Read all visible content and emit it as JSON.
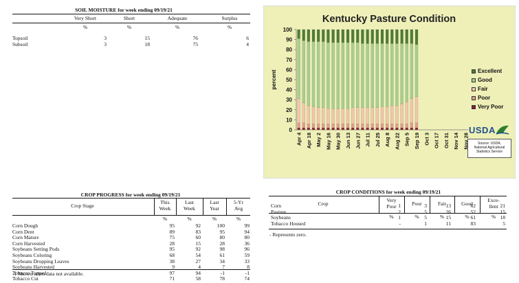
{
  "soil_moisture": {
    "title": "SOIL MOISTURE for week ending 09/19/21",
    "columns": [
      "Very Short",
      "Short",
      "Adequate",
      "Surplus"
    ],
    "unit_row": [
      "%",
      "%",
      "%",
      "%"
    ],
    "rows": [
      {
        "label": "Topsoil",
        "values": [
          "3",
          "15",
          "76",
          "6"
        ]
      },
      {
        "label": "Subsoil",
        "values": [
          "3",
          "18",
          "75",
          "4"
        ]
      }
    ]
  },
  "crop_progress": {
    "title": "CROP PROGRESS for week ending 09/19/21",
    "stage_header": "Crop Stage",
    "columns": [
      {
        "line1": "This",
        "line2": "Week"
      },
      {
        "line1": "Last",
        "line2": "Week"
      },
      {
        "line1": "Last",
        "line2": "Year"
      },
      {
        "line1": "5-Yr",
        "line2": "Avg"
      }
    ],
    "unit_row": [
      "%",
      "%",
      "%",
      "%"
    ],
    "rows": [
      {
        "label": "Corn Dough",
        "values": [
          "95",
          "92",
          "100",
          "99"
        ]
      },
      {
        "label": "Corn Dent",
        "values": [
          "89",
          "83",
          "95",
          "94"
        ]
      },
      {
        "label": "Corn Mature",
        "values": [
          "75",
          "60",
          "80",
          "80"
        ]
      },
      {
        "label": "Corn Harvested",
        "values": [
          "28",
          "15",
          "28",
          "36"
        ]
      },
      {
        "label": "Soybeans Setting Pods",
        "values": [
          "95",
          "92",
          "98",
          "96"
        ]
      },
      {
        "label": "Soybeans Coloring",
        "values": [
          "68",
          "54",
          "61",
          "59"
        ]
      },
      {
        "label": "Soybeans Dropping Leaves",
        "values": [
          "38",
          "27",
          "34",
          "33"
        ]
      },
      {
        "label": "Soybeans Harvested",
        "values": [
          "9",
          "4",
          "7",
          "8"
        ]
      },
      {
        "label": "Tobacco Topped",
        "values": [
          "97",
          "94",
          "-1",
          "-1"
        ]
      },
      {
        "label": "Tobacco Cut",
        "values": [
          "71",
          "58",
          "78",
          "74"
        ]
      }
    ],
    "footnote": "-1 Shown when data not available."
  },
  "crop_conditions": {
    "title": "CROP CONDITIONS for week ending 09/19/21",
    "crop_header": "Crop",
    "columns": [
      {
        "line1": "Very",
        "line2": "Poor"
      },
      {
        "line1": "Poor",
        "line2": ""
      },
      {
        "line1": "Fair",
        "line2": ""
      },
      {
        "line1": "Good",
        "line2": ""
      },
      {
        "line1": "Exce-",
        "line2": "llent"
      }
    ],
    "unit_row": [
      "%",
      "%",
      "%",
      "%",
      "%"
    ],
    "rows": [
      {
        "label": "Corn",
        "values": [
          "1",
          "3",
          "13",
          "62",
          "21"
        ]
      },
      {
        "label": "Pasture",
        "values": [
          "2",
          "5",
          "26",
          "52",
          "15"
        ]
      },
      {
        "label": "Soybeans",
        "values": [
          "1",
          "5",
          "15",
          "61",
          "18"
        ]
      },
      {
        "label": "Tobacco Housed",
        "values": [
          "-",
          "1",
          "11",
          "83",
          "5"
        ]
      }
    ],
    "footnote": "- Represents zero."
  },
  "chart_data": {
    "type": "bar",
    "stacked": true,
    "title": "Kentucky Pasture Condition",
    "xlabel": "",
    "ylabel": "percent",
    "ylim": [
      0,
      100
    ],
    "yticks": [
      0,
      10,
      20,
      30,
      40,
      50,
      60,
      70,
      80,
      90,
      100
    ],
    "grid": false,
    "legend_position": "right",
    "tick_labels": [
      "Apr 4",
      "Apr 18",
      "May 2",
      "May 16",
      "May 30",
      "Jun 13",
      "Jun 27",
      "Jul 11",
      "Jul 25",
      "Aug 8",
      "Aug 22",
      "Sep 5",
      "Sep 19",
      "Oct 3",
      "Oct 17",
      "Oct 31",
      "Nov 14",
      "Nov 28"
    ],
    "categories": [
      "Apr 4",
      "Apr 11",
      "Apr 18",
      "Apr 25",
      "May 2",
      "May 9",
      "May 16",
      "May 23",
      "May 30",
      "Jun 6",
      "Jun 13",
      "Jun 20",
      "Jun 27",
      "Jul 4",
      "Jul 11",
      "Jul 18",
      "Jul 25",
      "Aug 1",
      "Aug 8",
      "Aug 15",
      "Aug 22",
      "Aug 29",
      "Sep 5",
      "Sep 12",
      "Sep 19",
      "Sep 26",
      "Oct 3",
      "Oct 10",
      "Oct 17",
      "Oct 24",
      "Oct 31",
      "Nov 7",
      "Nov 14",
      "Nov 21",
      "Nov 28"
    ],
    "series": [
      {
        "name": "Very Poor",
        "color": "#8b1c2c",
        "values": [
          2,
          2,
          2,
          2,
          2,
          2,
          2,
          2,
          2,
          2,
          2,
          2,
          2,
          2,
          2,
          2,
          2,
          2,
          2,
          2,
          2,
          2,
          2,
          2,
          2,
          null,
          null,
          null,
          null,
          null,
          null,
          null,
          null,
          null,
          null
        ]
      },
      {
        "name": "Poor",
        "color": "#e59a8c",
        "values": [
          5,
          5,
          4,
          4,
          4,
          4,
          4,
          4,
          4,
          4,
          4,
          4,
          4,
          4,
          4,
          4,
          4,
          4,
          4,
          4,
          4,
          4,
          4,
          5,
          5,
          null,
          null,
          null,
          null,
          null,
          null,
          null,
          null,
          null,
          null
        ]
      },
      {
        "name": "Fair",
        "color": "#f4c6ab",
        "values": [
          24,
          20,
          18,
          17,
          16,
          16,
          15,
          15,
          15,
          15,
          15,
          16,
          16,
          16,
          16,
          16,
          16,
          17,
          17,
          18,
          18,
          20,
          22,
          24,
          26,
          null,
          null,
          null,
          null,
          null,
          null,
          null,
          null,
          null,
          null
        ]
      },
      {
        "name": "Good",
        "color": "#a9cf8c",
        "values": [
          60,
          62,
          64,
          65,
          66,
          66,
          66,
          66,
          66,
          66,
          66,
          65,
          65,
          64,
          64,
          64,
          64,
          63,
          63,
          62,
          62,
          60,
          58,
          55,
          52,
          null,
          null,
          null,
          null,
          null,
          null,
          null,
          null,
          null,
          null
        ]
      },
      {
        "name": "Excellent",
        "color": "#4f7d33",
        "values": [
          9,
          11,
          12,
          12,
          12,
          12,
          13,
          13,
          13,
          13,
          13,
          13,
          13,
          14,
          14,
          14,
          14,
          14,
          14,
          14,
          14,
          14,
          14,
          14,
          15,
          null,
          null,
          null,
          null,
          null,
          null,
          null,
          null,
          null,
          null
        ]
      }
    ],
    "plot_background": "#eef0b8"
  },
  "usda": {
    "logo_text": "USDA",
    "source_line1": "Source: USDA,",
    "source_line2": "National Agricultural",
    "source_line3": "Statistics Service"
  }
}
